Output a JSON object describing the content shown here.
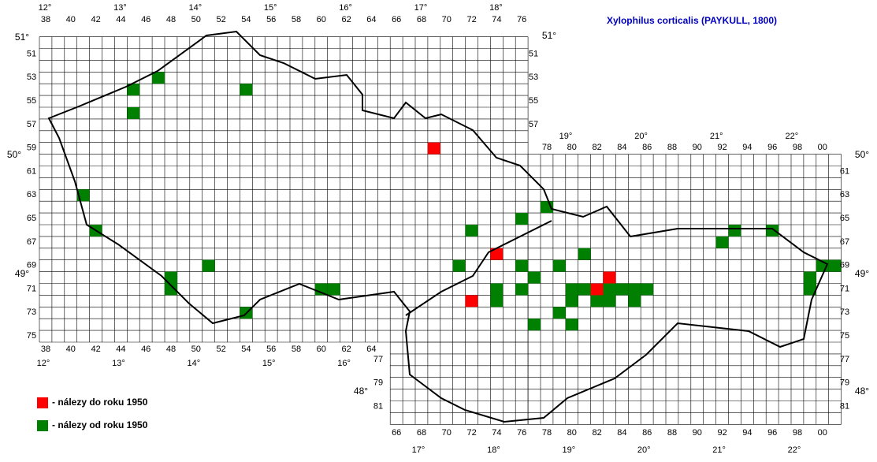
{
  "title": "Xylophilus corticalis (PAYKULL, 1800)",
  "top_degrees_cz": [
    "12°",
    "13°",
    "14°",
    "15°",
    "16°",
    "17°",
    "18°"
  ],
  "top_degrees_sk": [
    "19°",
    "20°",
    "21°",
    "22°"
  ],
  "top_columns_cz": [
    "38",
    "40",
    "42",
    "44",
    "46",
    "48",
    "50",
    "52",
    "54",
    "56",
    "58",
    "60",
    "62",
    "64",
    "66",
    "68",
    "70",
    "72",
    "74",
    "76"
  ],
  "top_columns_sk": [
    "78",
    "80",
    "82",
    "84",
    "86",
    "88",
    "90",
    "92",
    "94",
    "96",
    "98",
    "00"
  ],
  "bottom_columns_cz": [
    "38",
    "40",
    "42",
    "44",
    "46",
    "48",
    "50",
    "52",
    "54",
    "56",
    "58",
    "60",
    "62",
    "64"
  ],
  "bottom_degrees_cz": [
    "12°",
    "13°",
    "14°",
    "15°",
    "16°"
  ],
  "bottom_columns_sk": [
    "66",
    "68",
    "70",
    "72",
    "74",
    "76",
    "78",
    "80",
    "82",
    "84",
    "86",
    "88",
    "90",
    "92",
    "94",
    "96",
    "98",
    "00"
  ],
  "bottom_degrees_sk": [
    "17°",
    "18°",
    "19°",
    "20°",
    "21°",
    "22°"
  ],
  "left_rows_cz": [
    "51",
    "53",
    "55",
    "57",
    "59",
    "61",
    "63",
    "65",
    "67",
    "69",
    "71",
    "73",
    "75"
  ],
  "right_rows_cz": [
    "51",
    "53",
    "55",
    "57"
  ],
  "right_rows_sk": [
    "61",
    "63",
    "65",
    "67",
    "69",
    "71",
    "73",
    "75",
    "77",
    "79",
    "81"
  ],
  "left_rows_sk": [
    "77",
    "79",
    "81"
  ],
  "latitudes": {
    "left_51": "51°",
    "right_51": "51°",
    "left_50": "50°",
    "right_50": "50°",
    "left_49": "49°",
    "right_49": "49°",
    "left_48": "48°",
    "right_48": "48°"
  },
  "legend": {
    "before": "- nálezy do roku 1950",
    "after": "- nálezy od roku 1950"
  }
}
